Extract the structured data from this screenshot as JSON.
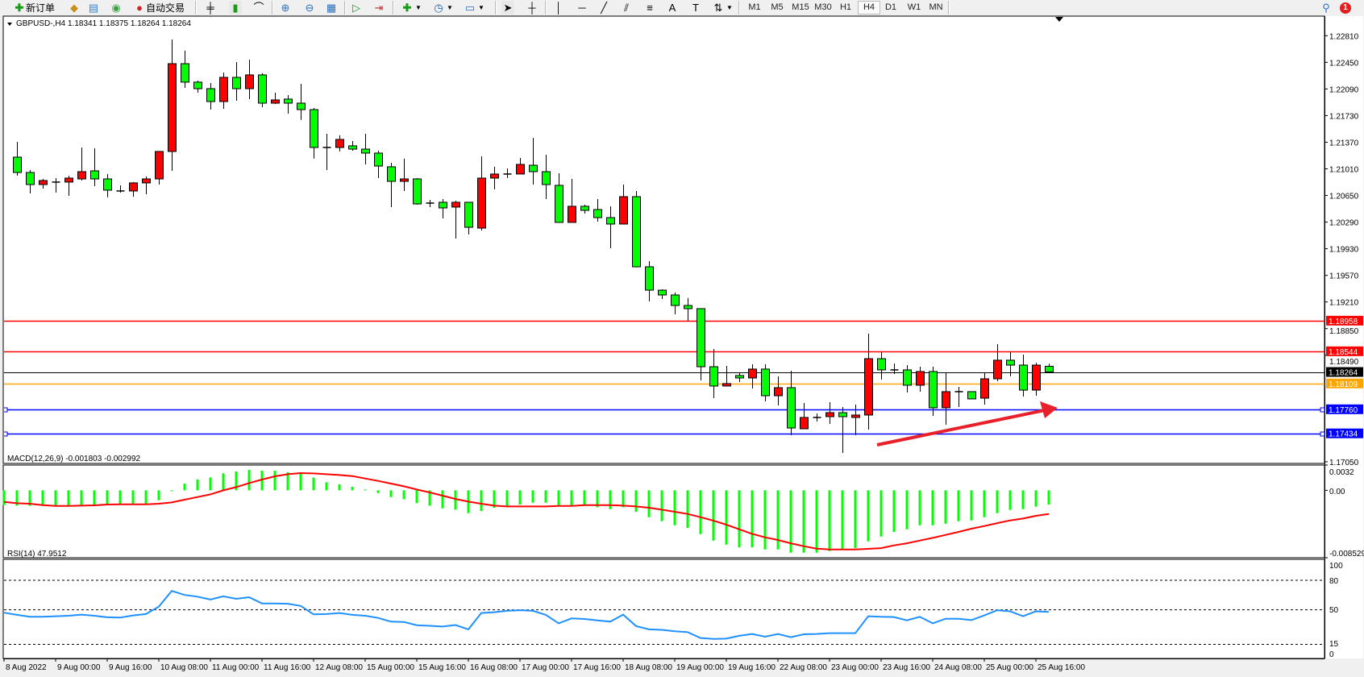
{
  "toolbar": {
    "new_order": "新订单",
    "auto_trading": "自动交易",
    "timeframes": [
      "M1",
      "M5",
      "M15",
      "M30",
      "H1",
      "H4",
      "D1",
      "W1",
      "MN"
    ],
    "selected_timeframe": "H4",
    "icons": [
      "new-order-icon",
      "market-watch-icon",
      "data-window-icon",
      "navigator-icon",
      "auto-trading-icon",
      "bar-chart-icon",
      "candlestick-icon",
      "line-chart-icon",
      "zoom-in-icon",
      "zoom-out-icon",
      "tile-windows-icon",
      "auto-scroll-icon",
      "chart-shift-icon",
      "indicators-icon",
      "periods-icon",
      "templates-icon",
      "cursor-icon",
      "crosshair-icon",
      "vertical-line-icon",
      "horizontal-line-icon",
      "trendline-icon",
      "equidistant-channel-icon",
      "fibonacci-icon",
      "text-icon",
      "text-label-icon",
      "arrows-icon",
      "search-icon",
      "notification-icon"
    ],
    "notification_count": "1"
  },
  "chart": {
    "title": "GBPUSD-,H4",
    "ohlc_text": "1.18341 1.18375 1.18264 1.18264",
    "bull_color": "#ff0000",
    "bear_color": "#00ff00",
    "price_ticks": [
      "1.22810",
      "1.22450",
      "1.22090",
      "1.21730",
      "1.21370",
      "1.21010",
      "1.20650",
      "1.20290",
      "1.19930",
      "1.19570",
      "1.19210",
      "1.18850",
      "1.18490",
      "1.17050"
    ],
    "levels": [
      {
        "price": 1.18958,
        "label": "1.18958",
        "color": "#ff0000"
      },
      {
        "price": 1.18544,
        "label": "1.18544",
        "color": "#ff0000"
      },
      {
        "price": 1.18264,
        "label": "1.18264",
        "color": "#000000"
      },
      {
        "price": 1.18109,
        "label": "1.18109",
        "color": "#ffa500"
      },
      {
        "price": 1.1776,
        "label": "1.17760",
        "color": "#0000ff"
      },
      {
        "price": 1.17434,
        "label": "1.17434",
        "color": "#0000ff"
      }
    ],
    "arrow_color": "#e8202a",
    "candles": [
      [
        1.21168,
        1.21375,
        1.20918,
        1.20961
      ],
      [
        1.20961,
        1.20994,
        1.20678,
        1.20798
      ],
      [
        1.20798,
        1.20874,
        1.20743,
        1.20852
      ],
      [
        1.20831,
        1.20885,
        1.20689,
        1.20831
      ],
      [
        1.20831,
        1.20918,
        1.20645,
        1.20885
      ],
      [
        1.20874,
        1.21299,
        1.20852,
        1.20972
      ],
      [
        1.20983,
        1.21288,
        1.20776,
        1.20874
      ],
      [
        1.20874,
        1.2094,
        1.20624,
        1.20722
      ],
      [
        1.20711,
        1.20787,
        1.20689,
        1.20711
      ],
      [
        1.20711,
        1.20831,
        1.20634,
        1.2082
      ],
      [
        1.2082,
        1.20907,
        1.20667,
        1.20874
      ],
      [
        1.20874,
        1.21245,
        1.20798,
        1.21245
      ],
      [
        1.21245,
        1.22759,
        1.20983,
        1.22432
      ],
      [
        1.22432,
        1.22607,
        1.22105,
        1.22182
      ],
      [
        1.22182,
        1.22203,
        1.2204,
        1.22094
      ],
      [
        1.22094,
        1.22171,
        1.21811,
        1.2192
      ],
      [
        1.2192,
        1.22312,
        1.21822,
        1.22247
      ],
      [
        1.22247,
        1.22454,
        1.21931,
        1.22094
      ],
      [
        1.22094,
        1.22487,
        1.21953,
        1.2228
      ],
      [
        1.2228,
        1.22302,
        1.21844,
        1.21898
      ],
      [
        1.21898,
        1.2204,
        1.21887,
        1.21942
      ],
      [
        1.21953,
        1.22007,
        1.21757,
        1.21898
      ],
      [
        1.21898,
        1.2216,
        1.2167,
        1.21811
      ],
      [
        1.21811,
        1.21833,
        1.21147,
        1.21299
      ],
      [
        1.21299,
        1.21484,
        1.20994,
        1.21299
      ],
      [
        1.21299,
        1.21463,
        1.21245,
        1.21408
      ],
      [
        1.21321,
        1.21386,
        1.21255,
        1.21277
      ],
      [
        1.21277,
        1.21484,
        1.2107,
        1.21223
      ],
      [
        1.21223,
        1.21255,
        1.20885,
        1.21048
      ],
      [
        1.21038,
        1.21092,
        1.20493,
        1.20841
      ],
      [
        1.20841,
        1.21147,
        1.20711,
        1.20874
      ],
      [
        1.20874,
        1.20885,
        1.20525,
        1.20536
      ],
      [
        1.20547,
        1.20591,
        1.20493,
        1.20547
      ],
      [
        1.20558,
        1.20602,
        1.2034,
        1.20482
      ],
      [
        1.20493,
        1.2058,
        1.20068,
        1.20558
      ],
      [
        1.20558,
        1.20558,
        1.20122,
        1.2022
      ],
      [
        1.20209,
        1.21179,
        1.20177,
        1.20885
      ],
      [
        1.20885,
        1.21038,
        1.20732,
        1.2094
      ],
      [
        1.2094,
        1.21016,
        1.20885,
        1.2094
      ],
      [
        1.2094,
        1.21157,
        1.2094,
        1.2107
      ],
      [
        1.21059,
        1.2143,
        1.20798,
        1.20972
      ],
      [
        1.20972,
        1.21201,
        1.20602,
        1.20798
      ],
      [
        1.20787,
        1.2095,
        1.20286,
        1.20286
      ],
      [
        1.20286,
        1.20874,
        1.20286,
        1.20504
      ],
      [
        1.20504,
        1.20525,
        1.20406,
        1.20449
      ],
      [
        1.2046,
        1.20602,
        1.20297,
        1.20351
      ],
      [
        1.20351,
        1.20504,
        1.19937,
        1.20264
      ],
      [
        1.20264,
        1.20798,
        1.20264,
        1.20634
      ],
      [
        1.20634,
        1.20711,
        1.19686,
        1.19686
      ],
      [
        1.19686,
        1.19763,
        1.19218,
        1.1937
      ],
      [
        1.1937,
        1.19381,
        1.19251,
        1.19305
      ],
      [
        1.19305,
        1.19338,
        1.19044,
        1.19163
      ],
      [
        1.19163,
        1.19262,
        1.18946,
        1.1912
      ],
      [
        1.1912,
        1.1912,
        1.1815,
        1.18335
      ],
      [
        1.18335,
        1.18575,
        1.1791,
        1.18074
      ],
      [
        1.18074,
        1.18346,
        1.18074,
        1.18107
      ],
      [
        1.18216,
        1.18248,
        1.18128,
        1.18183
      ],
      [
        1.18183,
        1.18368,
        1.18041,
        1.18303
      ],
      [
        1.18303,
        1.18368,
        1.17867,
        1.17943
      ],
      [
        1.17943,
        1.18205,
        1.17812,
        1.18052
      ],
      [
        1.18052,
        1.18281,
        1.17409,
        1.17507
      ],
      [
        1.17496,
        1.17845,
        1.17496,
        1.17649
      ],
      [
        1.17649,
        1.17703,
        1.17594,
        1.17649
      ],
      [
        1.1766,
        1.17856,
        1.17562,
        1.17714
      ],
      [
        1.17714,
        1.17791,
        1.17169,
        1.1766
      ],
      [
        1.17649,
        1.17823,
        1.17409,
        1.17682
      ],
      [
        1.17682,
        1.18782,
        1.17485,
        1.18444
      ],
      [
        1.18444,
        1.18531,
        1.18161,
        1.18292
      ],
      [
        1.18292,
        1.18379,
        1.18237,
        1.18292
      ],
      [
        1.18292,
        1.18357,
        1.17987,
        1.18085
      ],
      [
        1.18085,
        1.18335,
        1.17998,
        1.1827
      ],
      [
        1.1827,
        1.18335,
        1.17671,
        1.1778
      ],
      [
        1.1778,
        1.18259,
        1.17551,
        1.17998
      ],
      [
        1.17998,
        1.18063,
        1.17791,
        1.17998
      ],
      [
        1.17998,
        1.17998,
        1.179,
        1.179
      ],
      [
        1.1791,
        1.18248,
        1.17823,
        1.18172
      ],
      [
        1.18172,
        1.1864,
        1.18139,
        1.18423
      ],
      [
        1.18423,
        1.18542,
        1.18205,
        1.18357
      ],
      [
        1.18357,
        1.18499,
        1.17932,
        1.18019
      ],
      [
        1.18019,
        1.1839,
        1.17943,
        1.18357
      ],
      [
        1.18341,
        1.18375,
        1.18264,
        1.18264
      ]
    ]
  },
  "macd": {
    "title": "MACD(12,26,9) -0.001803 -0.002992",
    "ticks": [
      "0.0032",
      "0.00",
      "-0.008529"
    ],
    "hist_color": "#00ff00",
    "signal_color": "#ff0000",
    "histogram": [
      -0.00187,
      -0.00194,
      -0.00197,
      -0.00187,
      -0.00197,
      -0.00197,
      -0.00197,
      -0.00187,
      -0.00187,
      -0.0017,
      -0.0017,
      -0.0017,
      -0.00126,
      -3e-05,
      0.00085,
      0.00136,
      0.00163,
      0.00214,
      0.00238,
      0.00258,
      0.00248,
      0.00248,
      0.00228,
      0.00214,
      0.0016,
      0.00102,
      0.00075,
      0.00044,
      0.0001,
      -0.00034,
      -0.00085,
      -0.00112,
      -0.00163,
      -0.00194,
      -0.00228,
      -0.00245,
      -0.00289,
      -0.00262,
      -0.00221,
      -0.00204,
      -0.0018,
      -0.00156,
      -0.00156,
      -0.00194,
      -0.00194,
      -0.00194,
      -0.00214,
      -0.00238,
      -0.00214,
      -0.00272,
      -0.0034,
      -0.00391,
      -0.00442,
      -0.00476,
      -0.00554,
      -0.00636,
      -0.00687,
      -0.00721,
      -0.00721,
      -0.00748,
      -0.00748,
      -0.00789,
      -0.00789,
      -0.00789,
      -0.00768,
      -0.00741,
      -0.00731,
      -0.00646,
      -0.00585,
      -0.00527,
      -0.00493,
      -0.00442,
      -0.00442,
      -0.00422,
      -0.00391,
      -0.00381,
      -0.0034,
      -0.00289,
      -0.00248,
      -0.00238,
      -0.00207,
      -0.001803
    ],
    "signal": [
      -0.00146,
      -0.00163,
      -0.0017,
      -0.00187,
      -0.00197,
      -0.00197,
      -0.00194,
      -0.0019,
      -0.0018,
      -0.00177,
      -0.00177,
      -0.00177,
      -0.0017,
      -0.00153,
      -0.00119,
      -0.00085,
      -0.00051,
      0,
      0.00041,
      0.00092,
      0.00136,
      0.00177,
      0.00204,
      0.00218,
      0.00214,
      0.00204,
      0.00194,
      0.0018,
      0.0015,
      0.00119,
      0.00085,
      0.00051,
      0.0001,
      -0.00027,
      -0.00068,
      -0.00109,
      -0.00143,
      -0.0017,
      -0.00194,
      -0.00204,
      -0.00204,
      -0.00204,
      -0.00204,
      -0.00197,
      -0.00197,
      -0.00187,
      -0.00187,
      -0.00187,
      -0.00194,
      -0.00204,
      -0.00221,
      -0.00245,
      -0.00272,
      -0.00299,
      -0.0034,
      -0.00384,
      -0.00435,
      -0.00493,
      -0.00551,
      -0.00595,
      -0.00629,
      -0.0067,
      -0.00707,
      -0.00738,
      -0.00748,
      -0.00748,
      -0.00748,
      -0.00741,
      -0.00731,
      -0.00697,
      -0.0067,
      -0.00636,
      -0.00602,
      -0.00564,
      -0.00527,
      -0.00486,
      -0.00452,
      -0.00415,
      -0.00381,
      -0.00357,
      -0.00323,
      -0.002992
    ]
  },
  "rsi": {
    "title": "RSI(14) 47.9512",
    "ticks": [
      "100",
      "80",
      "50",
      "15",
      "0"
    ],
    "levels": [
      80,
      50,
      15
    ],
    "line_color": "#1e90ff",
    "values": [
      47.1,
      44.9,
      42.9,
      42.9,
      43.5,
      44.0,
      45.1,
      44.0,
      42.4,
      42.1,
      44.3,
      45.7,
      53.2,
      69.2,
      65.1,
      63.4,
      60.4,
      63.7,
      61.2,
      62.8,
      56.5,
      56.5,
      56.2,
      54.0,
      45.4,
      45.7,
      46.8,
      44.9,
      44.0,
      41.8,
      38.0,
      37.7,
      34.4,
      33.8,
      33.0,
      34.6,
      30.2,
      46.8,
      47.6,
      49.0,
      49.6,
      49.0,
      44.9,
      36.3,
      41.3,
      40.7,
      39.3,
      38.0,
      45.1,
      33.5,
      30.2,
      29.7,
      28.3,
      27.4,
      21.4,
      20.5,
      20.8,
      23.6,
      25.5,
      22.7,
      25.5,
      22.2,
      25.2,
      25.5,
      26.3,
      26.3,
      26.3,
      43.5,
      42.9,
      42.7,
      39.3,
      42.9,
      36.3,
      41.0,
      41.0,
      39.6,
      44.3,
      49.6,
      48.5,
      43.5,
      48.5,
      47.95
    ]
  },
  "time_axis": [
    "8 Aug 2022",
    "9 Aug 00:00",
    "9 Aug 16:00",
    "10 Aug 08:00",
    "11 Aug 00:00",
    "11 Aug 16:00",
    "12 Aug 08:00",
    "15 Aug 00:00",
    "15 Aug 16:00",
    "16 Aug 08:00",
    "17 Aug 00:00",
    "17 Aug 16:00",
    "18 Aug 08:00",
    "19 Aug 00:00",
    "19 Aug 16:00",
    "22 Aug 08:00",
    "23 Aug 00:00",
    "23 Aug 16:00",
    "24 Aug 08:00",
    "25 Aug 00:00",
    "25 Aug 16:00"
  ]
}
